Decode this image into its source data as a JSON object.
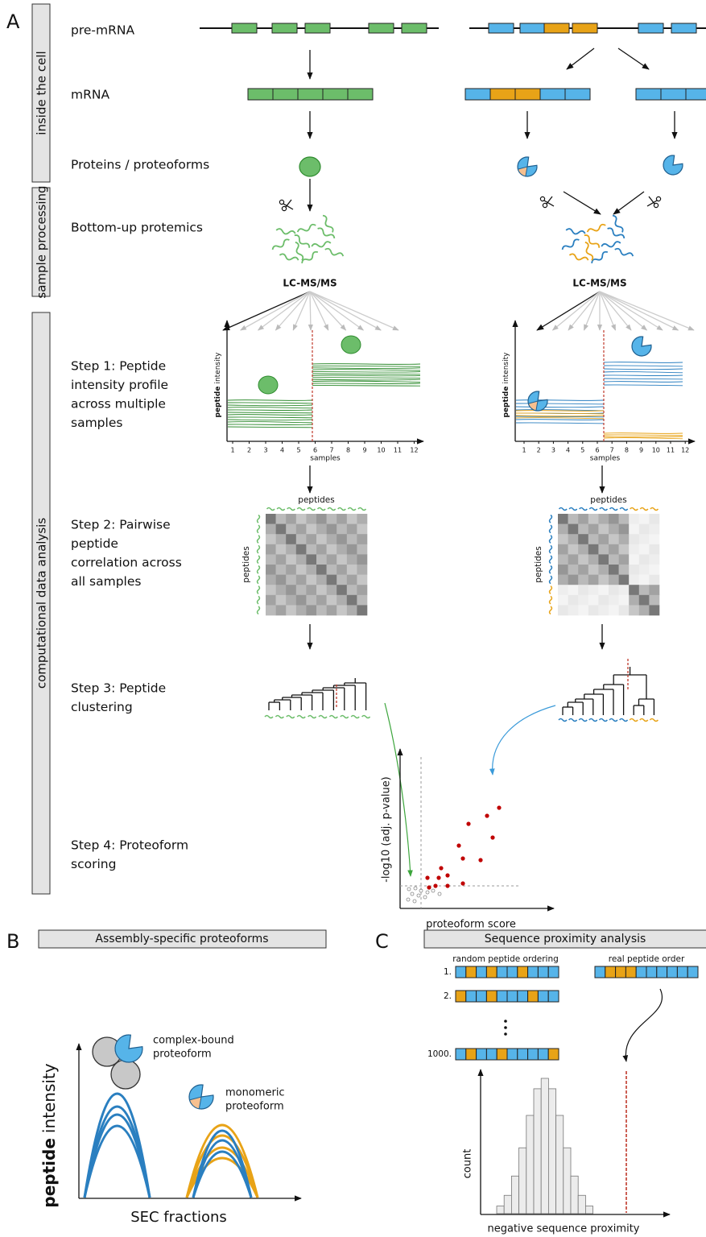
{
  "panels": {
    "a": "A",
    "b": "B",
    "c": "C"
  },
  "sections": {
    "inside": "inside the cell",
    "processing": "sample processing",
    "analysis": "computational data analysis"
  },
  "rows": {
    "pre_mrna": "pre-mRNA",
    "mrna": "mRNA",
    "proteins": "Proteins / proteoforms",
    "bottom_up": "Bottom-up protemics"
  },
  "steps": [
    [
      "Step 1: Peptide",
      "intensity profile",
      "across multiple",
      "samples"
    ],
    [
      "Step 2: Pairwise",
      "peptide",
      "correlation across",
      "all samples"
    ],
    [
      "Step 3: Peptide",
      "clustering"
    ],
    [
      "Step 4: Proteoform",
      "scoring"
    ]
  ],
  "lcms": "LC-MS/MS",
  "profile": {
    "y_bold": "peptide",
    "y_rest": "intensity",
    "x_label": "samples",
    "xticks": [
      1,
      2,
      3,
      4,
      5,
      6,
      7,
      8,
      9,
      10,
      11,
      12
    ]
  },
  "heatmap": {
    "label": "peptides"
  },
  "volcano": {
    "y_label": "-log10 (adj. p-value)",
    "x_label": "proteoform score"
  },
  "panel_b": {
    "title": "Assembly-specific proteoforms",
    "y_bold": "peptide",
    "y_rest": "intensity",
    "complex": [
      "complex-bound",
      "proteoform"
    ],
    "monomeric": [
      "monomeric",
      "proteoform"
    ],
    "x_label": "SEC fractions"
  },
  "panel_c": {
    "title": "Sequence proximity analysis",
    "random": "random peptide ordering",
    "real": "real peptide order",
    "row_labels": [
      "1.",
      "2.",
      "1000."
    ],
    "y_label": "count",
    "x_label": "negative sequence proximity"
  }
}
